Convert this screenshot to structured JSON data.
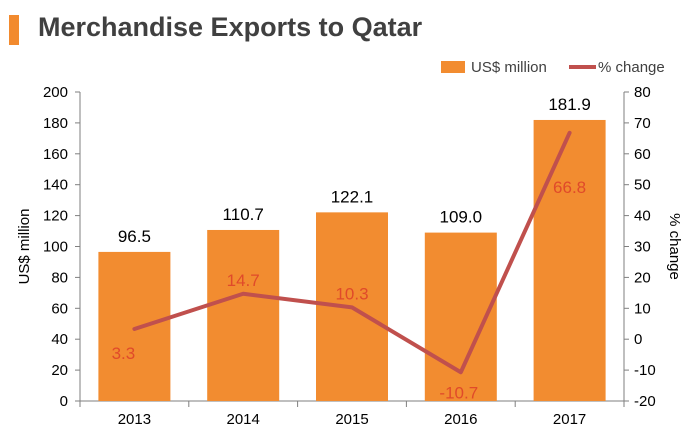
{
  "title": "Merchandise Exports to Qatar",
  "colors": {
    "accent": "#f28a2e",
    "bar": "#f28c30",
    "line": "#c0504d",
    "line_label": "#e04a2a",
    "axis": "#7f7f7f",
    "text": "#000000"
  },
  "chart_data": {
    "type": "bar",
    "categories": [
      "2013",
      "2014",
      "2015",
      "2016",
      "2017"
    ],
    "series": [
      {
        "name": "US$ million",
        "type": "bar",
        "axis": "left",
        "values": [
          96.5,
          110.7,
          122.1,
          109.0,
          181.9
        ],
        "labels": [
          "96.5",
          "110.7",
          "122.1",
          "109.0",
          "181.9"
        ]
      },
      {
        "name": "% change",
        "type": "line",
        "axis": "right",
        "values": [
          3.3,
          14.7,
          10.3,
          -10.7,
          66.8
        ],
        "labels": [
          "3.3",
          "14.7",
          "10.3",
          "-10.7",
          "66.8"
        ]
      }
    ],
    "ylabel": "US$ million",
    "y2label": "% change",
    "ylim": [
      0,
      200
    ],
    "y2lim": [
      -20,
      80
    ],
    "yticks": [
      "0",
      "20",
      "40",
      "60",
      "80",
      "100",
      "120",
      "140",
      "160",
      "180",
      "200"
    ],
    "y2ticks": [
      "-20",
      "-10",
      "0",
      "10",
      "20",
      "30",
      "40",
      "50",
      "60",
      "70",
      "80"
    ],
    "legend": "top-right",
    "grid": false
  }
}
